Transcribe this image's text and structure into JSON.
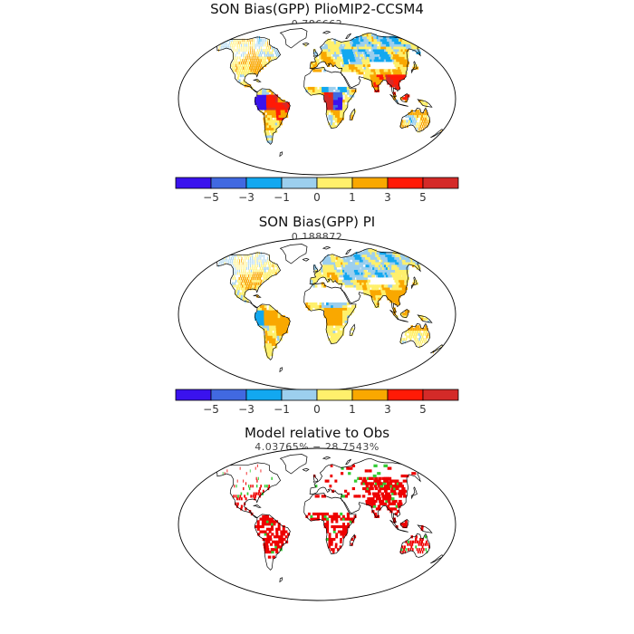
{
  "panels": [
    {
      "title": "SON Bias(GPP) PlioMIP2-CCSM4",
      "subtitle": "0.786662",
      "kind": "bias_strong"
    },
    {
      "title": "SON Bias(GPP) PI",
      "subtitle": "0.188872",
      "kind": "bias_weak"
    },
    {
      "title": "Model relative to Obs",
      "subtitle": "4.03765% − 28.7543%",
      "kind": "relative"
    }
  ],
  "colorbar": {
    "colors": [
      "#3a12ee",
      "#4169e1",
      "#12a8f0",
      "#9ccfee",
      "#fff06c",
      "#f9a800",
      "#ff1a06",
      "#d42a28"
    ],
    "tick_labels": [
      "−5",
      "−3",
      "−1",
      "0",
      "1",
      "3",
      "5"
    ]
  },
  "relative_colors": {
    "worse": "#ee0000",
    "better": "#33cc33"
  }
}
